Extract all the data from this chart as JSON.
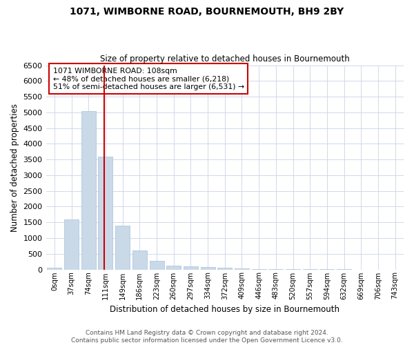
{
  "title": "1071, WIMBORNE ROAD, BOURNEMOUTH, BH9 2BY",
  "subtitle": "Size of property relative to detached houses in Bournemouth",
  "xlabel": "Distribution of detached houses by size in Bournemouth",
  "ylabel": "Number of detached properties",
  "annotation_line1": "1071 WIMBORNE ROAD: 108sqm",
  "annotation_line2": "← 48% of detached houses are smaller (6,218)",
  "annotation_line3": "51% of semi-detached houses are larger (6,531) →",
  "bar_color": "#c9d9e8",
  "bar_edge_color": "#a8c0d8",
  "vline_color": "#cc0000",
  "annotation_box_color": "#cc0000",
  "background_color": "#ffffff",
  "grid_color": "#d0d8e8",
  "categories": [
    "0sqm",
    "37sqm",
    "74sqm",
    "111sqm",
    "149sqm",
    "186sqm",
    "223sqm",
    "260sqm",
    "297sqm",
    "334sqm",
    "372sqm",
    "409sqm",
    "446sqm",
    "483sqm",
    "520sqm",
    "557sqm",
    "594sqm",
    "632sqm",
    "669sqm",
    "706sqm",
    "743sqm"
  ],
  "values": [
    50,
    1600,
    5050,
    3600,
    1400,
    600,
    280,
    120,
    100,
    70,
    50,
    30,
    10,
    5,
    3,
    2,
    1,
    1,
    0,
    0,
    0
  ],
  "ylim": [
    0,
    6500
  ],
  "vline_x_index": 2.92,
  "footer_line1": "Contains HM Land Registry data © Crown copyright and database right 2024.",
  "footer_line2": "Contains public sector information licensed under the Open Government Licence v3.0."
}
